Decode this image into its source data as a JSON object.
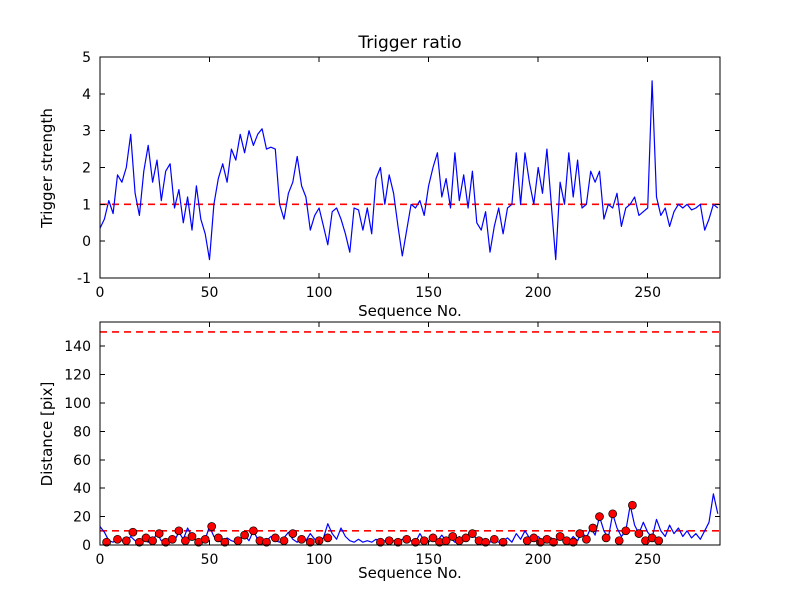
{
  "figure": {
    "background": "#ffffff",
    "line_color": "#0000ff",
    "threshold_color": "#ff0000",
    "scatter_color": "#ff0000",
    "scatter_edge_color": "#000000"
  },
  "chart_data": [
    {
      "type": "line",
      "title": "Trigger ratio",
      "xlabel": "Sequence No.",
      "ylabel": "Trigger strength",
      "xlim": [
        0,
        283
      ],
      "ylim": [
        -1,
        5
      ],
      "xticks": [
        0,
        50,
        100,
        150,
        200,
        250
      ],
      "yticks": [
        -1,
        0,
        1,
        2,
        3,
        4,
        5
      ],
      "grid": false,
      "legend": "none",
      "line_color": "#0000ff",
      "thresholds": [
        {
          "y": 1,
          "color": "#ff0000",
          "style": "dashed"
        }
      ],
      "series": [
        {
          "name": "trigger strength",
          "x0": 0,
          "dx": 2,
          "y": [
            0.35,
            0.6,
            1.1,
            0.75,
            1.8,
            1.6,
            2.0,
            2.9,
            1.3,
            0.7,
            1.9,
            2.6,
            1.6,
            2.2,
            1.1,
            1.9,
            2.1,
            0.9,
            1.4,
            0.5,
            1.2,
            0.3,
            1.5,
            0.6,
            0.2,
            -0.5,
            1.0,
            1.7,
            2.1,
            1.6,
            2.5,
            2.2,
            2.9,
            2.4,
            3.0,
            2.6,
            2.9,
            3.05,
            2.5,
            2.55,
            2.5,
            1.0,
            0.6,
            1.3,
            1.6,
            2.3,
            1.5,
            1.2,
            0.3,
            0.7,
            0.9,
            0.4,
            -0.1,
            0.8,
            0.9,
            0.6,
            0.2,
            -0.3,
            0.9,
            0.85,
            0.3,
            0.9,
            0.2,
            1.7,
            2.0,
            1.0,
            1.8,
            1.3,
            0.4,
            -0.4,
            0.3,
            1.0,
            0.9,
            1.1,
            0.7,
            1.5,
            2.0,
            2.4,
            1.2,
            1.7,
            0.9,
            2.4,
            1.1,
            1.8,
            0.9,
            1.9,
            0.5,
            0.3,
            0.8,
            -0.3,
            0.4,
            0.9,
            0.2,
            0.9,
            1.0,
            2.4,
            1.0,
            2.4,
            1.6,
            1.0,
            2.0,
            1.3,
            2.5,
            1.0,
            -0.5,
            1.6,
            1.0,
            2.4,
            1.2,
            2.2,
            0.9,
            1.0,
            1.9,
            1.6,
            1.9,
            0.6,
            1.0,
            0.9,
            1.3,
            0.4,
            0.9,
            1.0,
            1.2,
            0.7,
            0.8,
            0.9,
            4.35,
            1.2,
            0.7,
            0.9,
            0.4,
            0.8,
            1.0,
            0.9,
            1.0,
            0.85,
            0.9,
            1.0,
            0.3,
            0.6,
            1.0,
            0.9
          ]
        }
      ],
      "annotations": {
        "spike": {
          "x": 252,
          "y": 4.35
        }
      }
    },
    {
      "type": "line",
      "title": "",
      "xlabel": "Sequence No.",
      "ylabel": "Distance [pix]",
      "xlim": [
        0,
        283
      ],
      "ylim": [
        0,
        157
      ],
      "xticks": [
        0,
        50,
        100,
        150,
        200,
        250
      ],
      "yticks": [
        0,
        20,
        40,
        60,
        80,
        100,
        120,
        140
      ],
      "grid": false,
      "legend": "none",
      "line_color": "#0000ff",
      "thresholds": [
        {
          "y": 150,
          "color": "#ff0000",
          "style": "dashed"
        },
        {
          "y": 10,
          "color": "#ff0000",
          "style": "dashed"
        }
      ],
      "series": [
        {
          "name": "distance",
          "x0": 0,
          "dx": 2,
          "y": [
            13,
            9,
            3,
            2,
            5,
            3,
            2,
            6,
            3,
            2,
            4,
            2,
            3,
            8,
            3,
            2,
            5,
            3,
            9,
            4,
            12,
            6,
            3,
            2,
            4,
            13,
            6,
            3,
            2,
            5,
            3,
            2,
            4,
            7,
            3,
            10,
            4,
            2,
            3,
            6,
            3,
            2,
            5,
            9,
            4,
            2,
            6,
            3,
            8,
            4,
            3,
            5,
            15,
            8,
            4,
            12,
            6,
            3,
            2,
            4,
            2,
            3,
            2,
            4,
            2,
            3,
            2,
            3,
            2,
            4,
            2,
            3,
            2,
            8,
            3,
            2,
            5,
            3,
            7,
            3,
            5,
            2,
            6,
            3,
            5,
            8,
            4,
            2,
            3,
            2,
            4,
            2,
            3,
            5,
            2,
            8,
            4,
            10,
            5,
            3,
            6,
            3,
            2,
            5,
            3,
            7,
            4,
            2,
            6,
            3,
            9,
            5,
            12,
            7,
            20,
            10,
            5,
            22,
            12,
            6,
            10,
            28,
            14,
            8,
            16,
            9,
            5,
            18,
            10,
            6,
            14,
            8,
            12,
            6,
            10,
            5,
            8,
            4,
            10,
            16,
            36,
            22
          ]
        }
      ],
      "scatter": {
        "name": "detections",
        "color": "#ff0000",
        "edge": "#000000",
        "points": [
          [
            3,
            2
          ],
          [
            8,
            4
          ],
          [
            12,
            3
          ],
          [
            15,
            9
          ],
          [
            18,
            2
          ],
          [
            21,
            5
          ],
          [
            24,
            3
          ],
          [
            27,
            8
          ],
          [
            30,
            2
          ],
          [
            33,
            4
          ],
          [
            36,
            10
          ],
          [
            39,
            3
          ],
          [
            42,
            6
          ],
          [
            45,
            2
          ],
          [
            48,
            4
          ],
          [
            51,
            13
          ],
          [
            54,
            5
          ],
          [
            57,
            2
          ],
          [
            63,
            3
          ],
          [
            66,
            7
          ],
          [
            70,
            10
          ],
          [
            73,
            3
          ],
          [
            76,
            2
          ],
          [
            80,
            5
          ],
          [
            84,
            3
          ],
          [
            88,
            8
          ],
          [
            92,
            4
          ],
          [
            96,
            2
          ],
          [
            100,
            3
          ],
          [
            104,
            5
          ],
          [
            128,
            2
          ],
          [
            132,
            3
          ],
          [
            136,
            2
          ],
          [
            140,
            4
          ],
          [
            144,
            2
          ],
          [
            148,
            3
          ],
          [
            152,
            5
          ],
          [
            155,
            2
          ],
          [
            158,
            3
          ],
          [
            161,
            6
          ],
          [
            164,
            3
          ],
          [
            167,
            5
          ],
          [
            170,
            8
          ],
          [
            173,
            3
          ],
          [
            176,
            2
          ],
          [
            180,
            4
          ],
          [
            184,
            2
          ],
          [
            195,
            3
          ],
          [
            198,
            5
          ],
          [
            201,
            2
          ],
          [
            204,
            4
          ],
          [
            207,
            2
          ],
          [
            210,
            6
          ],
          [
            213,
            3
          ],
          [
            216,
            2
          ],
          [
            219,
            8
          ],
          [
            222,
            4
          ],
          [
            225,
            12
          ],
          [
            228,
            20
          ],
          [
            231,
            5
          ],
          [
            234,
            22
          ],
          [
            237,
            3
          ],
          [
            240,
            10
          ],
          [
            243,
            28
          ],
          [
            246,
            8
          ],
          [
            249,
            3
          ],
          [
            252,
            5
          ],
          [
            255,
            3
          ]
        ]
      }
    }
  ]
}
